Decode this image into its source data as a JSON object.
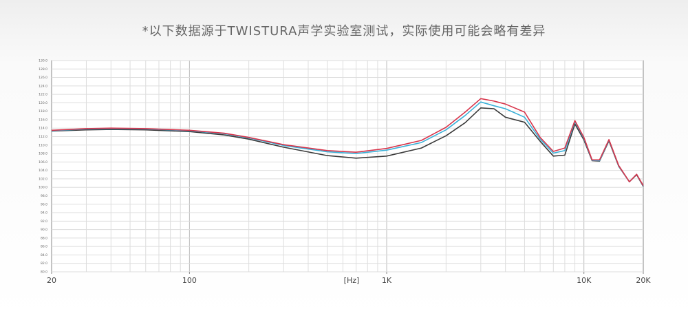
{
  "chart_data": {
    "type": "line",
    "title": "*以下数据源于TWISTURA声学实验室测试，实际使用可能会略有差异",
    "x_label": "[Hz]",
    "log_x": true,
    "grid": true,
    "x": [
      20,
      30,
      40,
      60,
      100,
      150,
      200,
      300,
      500,
      700,
      1000,
      1500,
      2000,
      2500,
      3000,
      3500,
      4000,
      5000,
      6000,
      7000,
      8000,
      9000,
      10000,
      11000,
      12000,
      13400,
      15000,
      17000,
      18500,
      20000
    ],
    "xlim": [
      20,
      20000
    ],
    "xticks": [
      {
        "value": 20,
        "label": "20"
      },
      {
        "value": 100,
        "label": "100"
      },
      {
        "value": 1000,
        "label": "1K"
      },
      {
        "value": 10000,
        "label": "10K"
      },
      {
        "value": 20000,
        "label": "20K"
      }
    ],
    "ylim": [
      80,
      130
    ],
    "yticks": [
      {
        "value": 80,
        "label": "80.0"
      },
      {
        "value": 82,
        "label": "82.0"
      },
      {
        "value": 84,
        "label": "84.0"
      },
      {
        "value": 86,
        "label": "86.0"
      },
      {
        "value": 88,
        "label": "88.0"
      },
      {
        "value": 90,
        "label": "90.0"
      },
      {
        "value": 92,
        "label": "92.0"
      },
      {
        "value": 94,
        "label": "94.0"
      },
      {
        "value": 96,
        "label": "96.0"
      },
      {
        "value": 98,
        "label": "98.0"
      },
      {
        "value": 100,
        "label": "100.0"
      },
      {
        "value": 102,
        "label": "102.0"
      },
      {
        "value": 104,
        "label": "104.0"
      },
      {
        "value": 106,
        "label": "106.0"
      },
      {
        "value": 108,
        "label": "108.0"
      },
      {
        "value": 110,
        "label": "110.0"
      },
      {
        "value": 112,
        "label": "112.0"
      },
      {
        "value": 114,
        "label": "114.0"
      },
      {
        "value": 116,
        "label": "116.0"
      },
      {
        "value": 118,
        "label": "118.0"
      },
      {
        "value": 120,
        "label": "120.0"
      },
      {
        "value": 122,
        "label": "122.0"
      },
      {
        "value": 124,
        "label": "124.0"
      },
      {
        "value": 126,
        "label": "126.0"
      },
      {
        "value": 128,
        "label": "128.0"
      },
      {
        "value": 130,
        "label": "130.0"
      }
    ],
    "series": [
      {
        "color": "#3a3a3a",
        "values": [
          113.3,
          113.6,
          113.7,
          113.6,
          113.2,
          112.4,
          111.4,
          109.5,
          107.5,
          106.9,
          107.4,
          109.3,
          112.2,
          115.3,
          118.8,
          118.6,
          116.6,
          115.4,
          110.9,
          107.4,
          107.6,
          115.0,
          111.2,
          106.3,
          106.2,
          111.0,
          105.0,
          101.3,
          103.0,
          100.2
        ]
      },
      {
        "color": "#3ab0d8",
        "values": [
          113.4,
          113.8,
          113.9,
          113.8,
          113.4,
          112.7,
          111.7,
          109.9,
          108.4,
          108.0,
          108.8,
          110.6,
          113.6,
          117.0,
          120.2,
          119.3,
          118.6,
          116.6,
          111.4,
          108.1,
          108.7,
          115.6,
          111.6,
          106.4,
          106.3,
          111.2,
          105.1,
          101.3,
          103.1,
          100.3
        ]
      },
      {
        "color": "#d8344a",
        "values": [
          113.5,
          113.9,
          114.0,
          113.9,
          113.5,
          112.8,
          111.8,
          110.1,
          108.7,
          108.3,
          109.2,
          111.1,
          114.2,
          117.8,
          121.0,
          120.4,
          119.7,
          117.8,
          111.8,
          108.5,
          109.3,
          115.8,
          111.8,
          106.5,
          106.5,
          111.3,
          105.2,
          101.3,
          103.1,
          100.4
        ]
      }
    ]
  }
}
